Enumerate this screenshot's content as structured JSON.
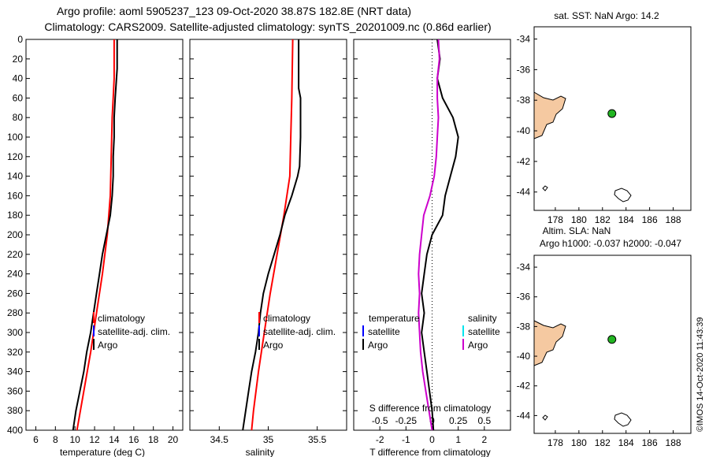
{
  "header": {
    "line1": "Argo profile: aoml 5905237_123 09-Oct-2020 38.87S 182.8E (NRT data)",
    "line2": "Climatology: CARS2009. Satellite-adjusted climatology: synTS_20201009.nc (0.86d earlier)"
  },
  "watermark": "©IMOS 14-Oct-2020 11:43:39",
  "colors": {
    "climatology": "#ff0000",
    "satellite": "#0000ff",
    "argo": "#000000",
    "sat_salinity": "#00e5ee",
    "argo_salinity": "#cc00cc",
    "land": "#f5c9a1",
    "float_marker": "#22b522"
  },
  "chart_data": [
    {
      "type": "line",
      "id": "temperature",
      "xlabel": "temperature (deg C)",
      "xlim": [
        5,
        21
      ],
      "xticks": [
        6,
        8,
        10,
        12,
        14,
        16,
        18,
        20
      ],
      "ylim": [
        400,
        0
      ],
      "yticks": [
        0,
        20,
        40,
        60,
        80,
        100,
        120,
        140,
        160,
        180,
        200,
        220,
        240,
        260,
        280,
        300,
        320,
        340,
        360,
        380,
        400
      ],
      "legend": [
        "climatology",
        "satellite-adj. clim.",
        "Argo"
      ],
      "series": [
        {
          "name": "climatology",
          "color_key": "climatology",
          "depth": [
            0,
            40,
            60,
            80,
            120,
            160,
            200,
            240,
            280,
            320,
            360,
            400
          ],
          "values": [
            14.0,
            14.0,
            13.9,
            13.8,
            13.7,
            13.6,
            13.3,
            12.8,
            12.2,
            11.6,
            10.9,
            10.2
          ]
        },
        {
          "name": "Argo",
          "color_key": "argo",
          "depth": [
            0,
            30,
            60,
            80,
            100,
            120,
            140,
            160,
            180,
            200,
            220,
            240,
            260,
            280,
            300,
            320,
            340,
            360,
            380,
            400
          ],
          "values": [
            14.3,
            14.3,
            14.1,
            14.0,
            14.0,
            13.9,
            13.9,
            13.8,
            13.6,
            13.2,
            12.8,
            12.5,
            12.2,
            11.9,
            11.6,
            11.2,
            10.9,
            10.5,
            10.1,
            9.8
          ]
        }
      ]
    },
    {
      "type": "line",
      "id": "salinity",
      "xlabel": "salinity",
      "xlim": [
        34.2,
        35.8
      ],
      "xticks": [
        34.5,
        35,
        35.5
      ],
      "ylim": [
        400,
        0
      ],
      "legend": [
        "climatology",
        "satellite-adj. clim.",
        "Argo"
      ],
      "series": [
        {
          "name": "climatology",
          "color_key": "climatology",
          "depth": [
            0,
            60,
            100,
            140,
            180,
            220,
            260,
            300,
            340,
            380,
            400
          ],
          "values": [
            35.25,
            35.24,
            35.23,
            35.22,
            35.16,
            35.09,
            35.02,
            34.96,
            34.9,
            34.85,
            34.83
          ]
        },
        {
          "name": "Argo",
          "color_key": "argo",
          "depth": [
            0,
            50,
            60,
            100,
            130,
            140,
            160,
            180,
            200,
            220,
            240,
            260,
            280,
            300,
            320,
            340,
            360,
            380,
            400
          ],
          "values": [
            35.31,
            35.31,
            35.33,
            35.33,
            35.32,
            35.3,
            35.24,
            35.17,
            35.12,
            35.06,
            35.0,
            34.95,
            34.92,
            34.9,
            34.87,
            34.83,
            34.8,
            34.77,
            34.74
          ]
        }
      ]
    },
    {
      "type": "line",
      "id": "difference",
      "xlabel": "T difference from climatology",
      "xlim": [
        -3,
        3
      ],
      "xticks": [
        -2,
        -1,
        0,
        1,
        2
      ],
      "top_xlabel": "S difference from climatology",
      "top_xticks": [
        -0.5,
        -0.25,
        0,
        0.25,
        0.5
      ],
      "ylim": [
        400,
        0
      ],
      "legend_left": {
        "title": "temperature",
        "items": [
          "satellite",
          "Argo"
        ]
      },
      "legend_right": {
        "title": "salinity",
        "items": [
          "satellite",
          "Argo"
        ]
      },
      "series": [
        {
          "name": "T difference (Argo)",
          "color_key": "argo",
          "depth": [
            0,
            20,
            40,
            60,
            80,
            100,
            120,
            140,
            160,
            180,
            200,
            220,
            240,
            260,
            280,
            300,
            320,
            340,
            360,
            380,
            400
          ],
          "values": [
            0.2,
            0.3,
            0.2,
            0.4,
            0.8,
            1.0,
            0.9,
            0.7,
            0.5,
            0.4,
            0.0,
            -0.2,
            -0.3,
            -0.4,
            -0.3,
            -0.4,
            -0.3,
            -0.2,
            -0.1,
            0.0,
            0.05
          ]
        },
        {
          "name": "S difference (Argo)",
          "color_key": "argo_salinity",
          "depth": [
            0,
            20,
            40,
            60,
            80,
            100,
            120,
            140,
            160,
            180,
            200,
            220,
            240,
            260,
            280,
            300,
            320,
            340,
            360,
            380,
            400
          ],
          "values": [
            0.06,
            0.07,
            0.05,
            0.05,
            0.06,
            0.05,
            0.04,
            0.02,
            -0.02,
            -0.08,
            -0.1,
            -0.12,
            -0.13,
            -0.12,
            -0.13,
            -0.12,
            -0.11,
            -0.09,
            -0.06,
            -0.03,
            0.0
          ]
        }
      ]
    },
    {
      "type": "map",
      "id": "sst_map",
      "title": "sat. SST: NaN Argo: 14.2",
      "xlim": [
        176.2,
        189.5
      ],
      "ylim": [
        -45.2,
        -33.2
      ],
      "xticks": [
        178,
        180,
        182,
        184,
        186,
        188
      ],
      "yticks": [
        -34,
        -36,
        -38,
        -40,
        -42,
        -44
      ],
      "float_position": {
        "lon": 182.8,
        "lat": -38.87
      }
    },
    {
      "type": "map",
      "id": "sla_map",
      "title": "Altim. SLA: NaN",
      "subtitle": "Argo h1000: -0.037 h2000: -0.047",
      "xlim": [
        176.2,
        189.5
      ],
      "ylim": [
        -45.2,
        -33.2
      ],
      "xticks": [
        178,
        180,
        182,
        184,
        186,
        188
      ],
      "yticks": [
        -34,
        -36,
        -38,
        -40,
        -42,
        -44
      ],
      "float_position": {
        "lon": 182.8,
        "lat": -38.87
      }
    }
  ]
}
